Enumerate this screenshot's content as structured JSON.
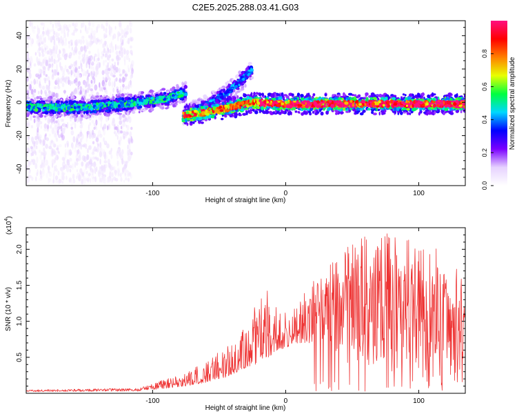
{
  "title": "C2E5.2025.288.03.41.G03",
  "chart_data": [
    {
      "type": "heatmap",
      "title": "C2E5.2025.288.03.41.G03",
      "xlabel": "Height of straight line (km)",
      "ylabel": "Frequency (Hz)",
      "xlim": [
        -195,
        135
      ],
      "ylim": [
        -50,
        49
      ],
      "x_ticks": [
        -100,
        0,
        100
      ],
      "y_ticks": [
        -40,
        -20,
        0,
        20,
        40
      ],
      "colorbar": {
        "label": "Normalized spectral amplitude",
        "range": [
          0,
          1
        ],
        "ticks": [
          0.0,
          0.2,
          0.4,
          0.6,
          0.8
        ],
        "tick_labels": [
          "0.0",
          "0.2",
          "0.4",
          "0.6",
          "0.8"
        ],
        "colors": [
          "#ffffff",
          "#e6d2ff",
          "#7a00ff",
          "#0000ff",
          "#00d8ff",
          "#00ff40",
          "#e8ff00",
          "#ff8000",
          "#ff0000",
          "#ff1080"
        ]
      },
      "bands": [
        {
          "name": "noise-scatter",
          "x_range": [
            -195,
            -115
          ],
          "freq_center": 0,
          "freq_spread": 48,
          "amplitude": 0.15
        },
        {
          "name": "lower-ionosphere-trace",
          "points": [
            [
              -195,
              -3
            ],
            [
              -150,
              -3
            ],
            [
              -120,
              -1
            ],
            [
              -90,
              2
            ],
            [
              -75,
              6
            ]
          ],
          "amplitude": 0.45
        },
        {
          "name": "rising-branch",
          "points": [
            [
              -77,
              -8
            ],
            [
              -60,
              -2
            ],
            [
              -45,
              5
            ],
            [
              -35,
              12
            ],
            [
              -25,
              20
            ]
          ],
          "amplitude": 0.35
        },
        {
          "name": "flat-branch",
          "points": [
            [
              -77,
              -8
            ],
            [
              -60,
              -6
            ],
            [
              -40,
              -3
            ],
            [
              -25,
              0
            ],
            [
              0,
              -1
            ],
            [
              135,
              -1
            ]
          ],
          "amplitude": 0.75
        }
      ]
    },
    {
      "type": "line",
      "xlabel": "Height of straight line (km)",
      "ylabel": "SNR (10 * v/v)",
      "y_scale_label": "(x10",
      "y_scale_exponent": "4",
      "xlim": [
        -195,
        135
      ],
      "ylim": [
        0,
        2.3
      ],
      "x_ticks": [
        -100,
        0,
        100
      ],
      "y_ticks": [
        0.5,
        1.0,
        1.5,
        2.0
      ],
      "y_tick_labels": [
        "0.5",
        "1.0",
        "1.5",
        "2.0"
      ],
      "color": "#ee3333",
      "envelope": [
        {
          "x": -195,
          "base": 0.02,
          "peak": 0.05
        },
        {
          "x": -110,
          "base": 0.03,
          "peak": 0.07
        },
        {
          "x": -100,
          "base": 0.05,
          "peak": 0.14
        },
        {
          "x": -75,
          "base": 0.1,
          "peak": 0.28
        },
        {
          "x": -60,
          "base": 0.15,
          "peak": 0.45
        },
        {
          "x": -45,
          "base": 0.22,
          "peak": 0.65
        },
        {
          "x": -30,
          "base": 0.35,
          "peak": 0.95
        },
        {
          "x": -16,
          "base": 0.45,
          "peak": 1.53
        },
        {
          "x": -5,
          "base": 0.6,
          "peak": 1.15
        },
        {
          "x": 10,
          "base": 0.7,
          "peak": 1.3
        },
        {
          "x": 25,
          "base": 0.7,
          "peak": 1.65
        },
        {
          "x": 40,
          "base": 0.5,
          "peak": 1.9
        },
        {
          "x": 55,
          "base": 0.3,
          "peak": 2.25
        },
        {
          "x": 70,
          "base": 0.25,
          "peak": 2.2
        },
        {
          "x": 80,
          "base": 0.25,
          "peak": 2.3
        },
        {
          "x": 100,
          "base": 0.2,
          "peak": 2.1
        },
        {
          "x": 115,
          "base": 0.2,
          "peak": 2.0
        },
        {
          "x": 125,
          "base": 0.15,
          "peak": 1.3
        },
        {
          "x": 130,
          "base": 0.2,
          "peak": 2.05
        },
        {
          "x": 135,
          "base": 0.5,
          "peak": 1.2
        }
      ]
    }
  ]
}
